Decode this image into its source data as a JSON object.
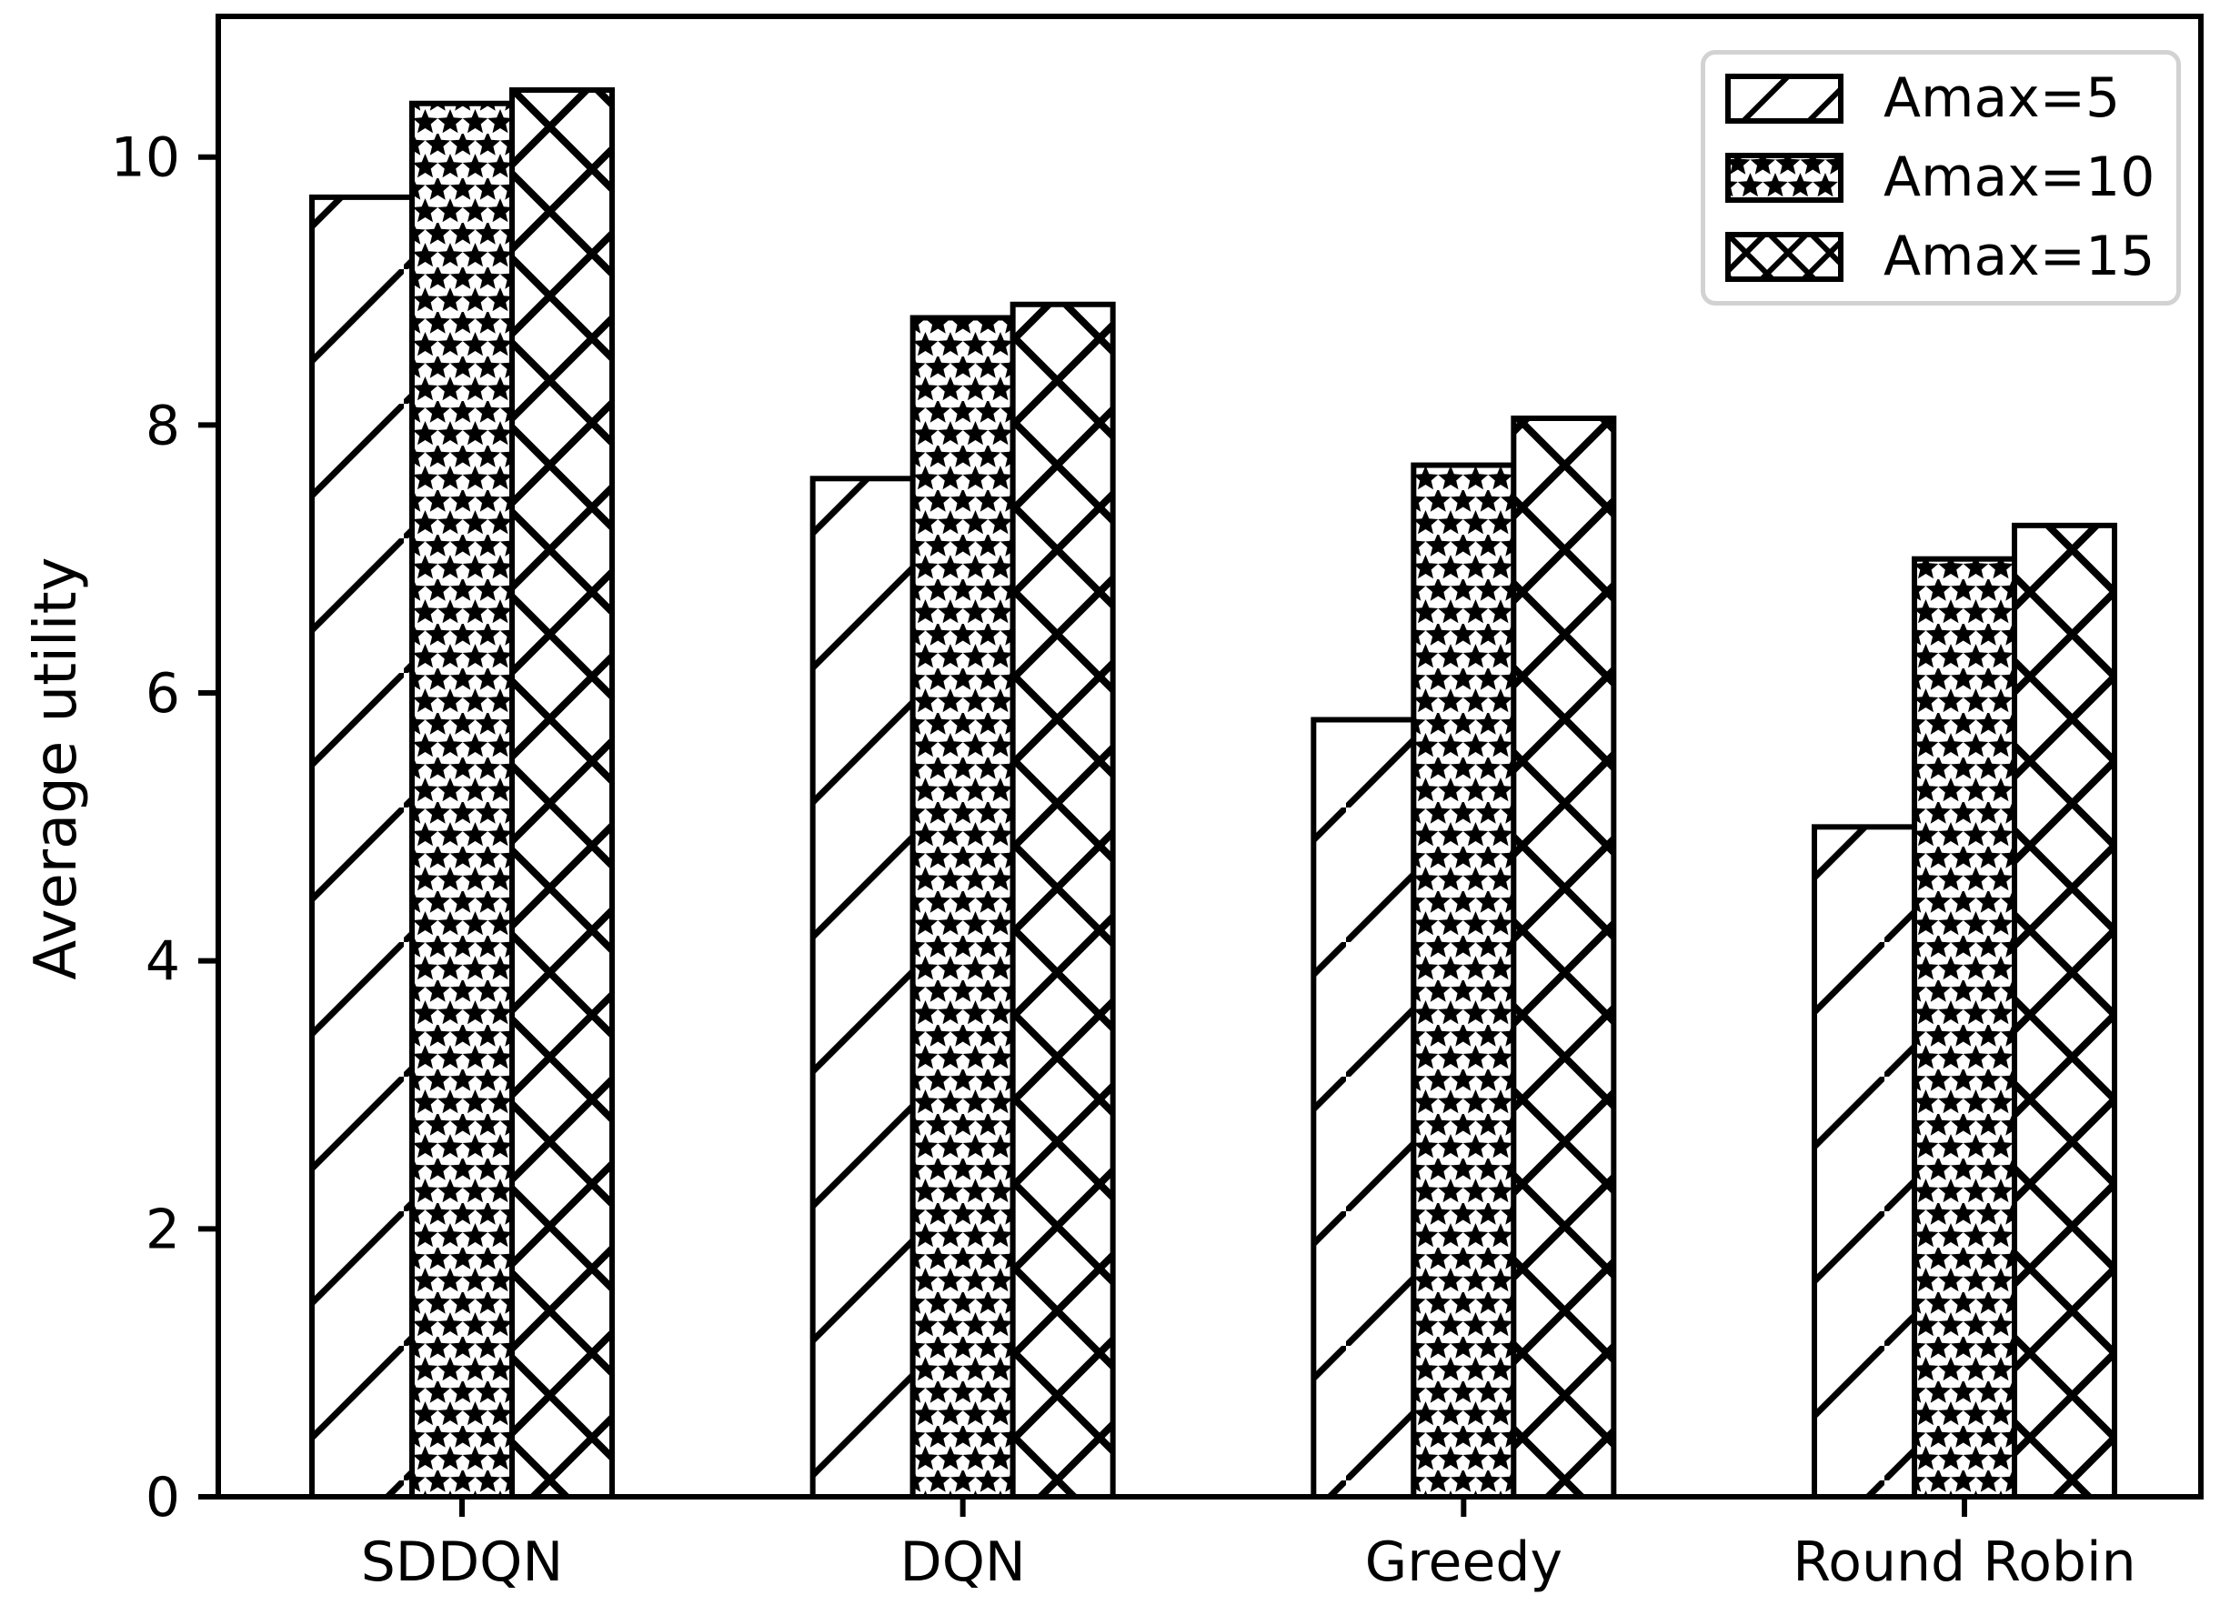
{
  "chart_data": {
    "type": "bar",
    "title": "",
    "xlabel": "",
    "ylabel": "Average utility",
    "categories": [
      "SDDQN",
      "DQN",
      "Greedy",
      "Round Robin"
    ],
    "series": [
      {
        "name": "Amax=5",
        "hatch": "diagonal",
        "values": [
          9.7,
          7.6,
          5.8,
          5.0
        ]
      },
      {
        "name": "Amax=10",
        "hatch": "star",
        "values": [
          10.4,
          8.8,
          7.7,
          7.0
        ]
      },
      {
        "name": "Amax=15",
        "hatch": "cross",
        "values": [
          10.5,
          8.9,
          8.05,
          7.25
        ]
      }
    ],
    "yticks": [
      0,
      2,
      4,
      6,
      8,
      10
    ],
    "ylim": [
      0,
      11.05
    ],
    "grid": false,
    "legend_position": "upper-right",
    "bar_face_color": "#ffffff",
    "bar_edge_color": "#000000",
    "legend_border_color": "#d2d2d2",
    "background": "#ffffff"
  }
}
